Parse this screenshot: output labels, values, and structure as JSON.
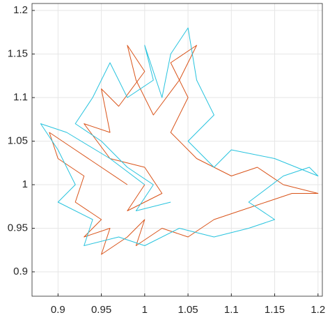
{
  "chart_data": {
    "type": "line",
    "xlim": [
      0.87,
      1.205
    ],
    "ylim": [
      0.872,
      1.208
    ],
    "xticks": [
      0.9,
      0.95,
      1,
      1.05,
      1.1,
      1.15,
      1.2
    ],
    "yticks": [
      0.9,
      0.95,
      1,
      1.05,
      1.1,
      1.15,
      1.2
    ],
    "grid": true,
    "series": [
      {
        "color": "#D95319",
        "x": [
          0.98,
          0.95,
          0.92,
          0.89,
          0.9,
          0.93,
          0.92,
          0.95,
          0.93,
          0.96,
          0.95,
          0.98,
          1.0,
          0.99,
          1.02,
          1.05,
          1.08,
          1.11,
          1.14,
          1.17,
          1.2,
          1.16,
          1.13,
          1.1,
          1.06,
          1.03,
          1.05,
          1.03,
          1.06,
          1.04,
          1.01,
          0.99,
          0.98,
          1.0,
          0.97,
          0.95,
          0.96,
          0.93,
          0.96,
          1.0,
          1.02,
          0.98,
          1.0
        ],
        "values": [
          1.0,
          1.02,
          1.04,
          1.06,
          1.03,
          1.01,
          0.98,
          0.96,
          0.94,
          0.95,
          0.92,
          0.94,
          0.96,
          0.93,
          0.95,
          0.94,
          0.96,
          0.97,
          0.98,
          0.99,
          0.99,
          1.0,
          1.02,
          1.01,
          1.03,
          1.06,
          1.1,
          1.14,
          1.16,
          1.12,
          1.08,
          1.12,
          1.16,
          1.13,
          1.09,
          1.11,
          1.06,
          1.07,
          1.03,
          1.02,
          0.99,
          0.97,
          1.0
        ]
      },
      {
        "color": "#27C3DE",
        "x": [
          1.0,
          0.96,
          0.91,
          0.88,
          0.9,
          0.92,
          0.9,
          0.94,
          0.93,
          0.97,
          1.0,
          1.04,
          1.08,
          1.12,
          1.15,
          1.12,
          1.16,
          1.19,
          1.2,
          1.15,
          1.1,
          1.08,
          1.05,
          1.08,
          1.06,
          1.05,
          1.03,
          1.02,
          1.0,
          1.01,
          0.98,
          0.96,
          0.94,
          0.92,
          0.95,
          0.98,
          1.01,
          0.99,
          1.03
        ],
        "values": [
          1.0,
          1.03,
          1.06,
          1.07,
          1.04,
          1.0,
          0.98,
          0.96,
          0.93,
          0.94,
          0.93,
          0.95,
          0.94,
          0.95,
          0.96,
          0.98,
          1.01,
          1.02,
          1.01,
          1.03,
          1.04,
          1.02,
          1.05,
          1.08,
          1.12,
          1.18,
          1.15,
          1.1,
          1.16,
          1.12,
          1.1,
          1.14,
          1.1,
          1.07,
          1.05,
          1.02,
          1.0,
          0.97,
          0.98
        ]
      }
    ]
  }
}
